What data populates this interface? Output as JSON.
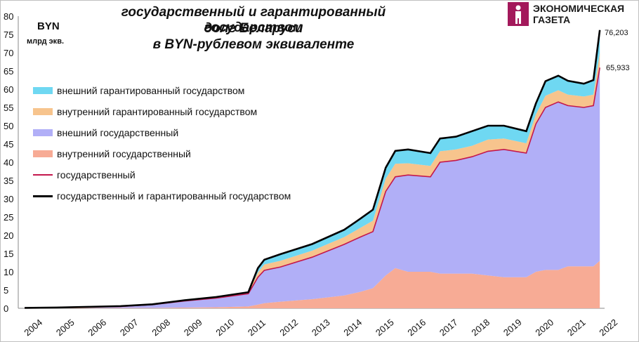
{
  "title": {
    "line1": "государственный и гарантированный государством",
    "line2": "долг Беларуси",
    "line3": "в BYN-рублевом эквиваленте"
  },
  "unit": {
    "currency": "BYN",
    "note": "млрд экв."
  },
  "logo": {
    "line1": "ЭКОНОМИЧЕСКАЯ",
    "line2": "ГАЗЕТА",
    "color": "#a3195b"
  },
  "end_labels": {
    "total": "76,203",
    "government": "65,933"
  },
  "legend": [
    {
      "label": "внешний гарантированный государством",
      "color": "#6fd8f2",
      "kind": "area"
    },
    {
      "label": "внутренний гарантированный государством",
      "color": "#f7c48d",
      "kind": "area"
    },
    {
      "label": "внешний государственный",
      "color": "#b1aff7",
      "kind": "area"
    },
    {
      "label": "внутренний государственный",
      "color": "#f7ab95",
      "kind": "area"
    },
    {
      "label": "государственный",
      "color": "#c3174c",
      "kind": "line"
    },
    {
      "label": "государственный и гарантированный государством",
      "color": "#000000",
      "kind": "line"
    }
  ],
  "chart_data": {
    "type": "area",
    "stacked": true,
    "x": [
      2004.0,
      2005.0,
      2006.0,
      2007.0,
      2008.0,
      2009.0,
      2010.0,
      2011.0,
      2011.3,
      2011.5,
      2012.0,
      2013.0,
      2014.0,
      2014.5,
      2014.9,
      2015.3,
      2015.6,
      2016.0,
      2016.7,
      2017.0,
      2017.5,
      2018.0,
      2018.5,
      2019.0,
      2019.7,
      2020.0,
      2020.3,
      2020.7,
      2021.0,
      2021.5,
      2021.8,
      2022.0
    ],
    "xlim": [
      2003.8,
      2022.15
    ],
    "xticks": [
      "2004",
      "2005",
      "2006",
      "2007",
      "2008",
      "2009",
      "2010",
      "2011",
      "2012",
      "2013",
      "2014",
      "2015",
      "2016",
      "2017",
      "2018",
      "2019",
      "2020",
      "2021",
      "2022"
    ],
    "ylim": [
      0,
      80
    ],
    "yticks": [
      0,
      5,
      10,
      15,
      20,
      25,
      30,
      35,
      40,
      45,
      50,
      55,
      60,
      65,
      70,
      75,
      80
    ],
    "series": [
      {
        "name": "внутренний государственный",
        "color": "#f7ab95",
        "values": [
          0.0,
          0.1,
          0.1,
          0.1,
          0.1,
          0.2,
          0.3,
          0.5,
          1.0,
          1.4,
          1.8,
          2.5,
          3.5,
          4.5,
          5.5,
          9.0,
          11.0,
          10.0,
          10.0,
          9.5,
          9.5,
          9.5,
          9.0,
          8.5,
          8.5,
          10.0,
          10.5,
          10.5,
          11.5,
          11.5,
          11.5,
          13.0
        ]
      },
      {
        "name": "внешний государственный",
        "color": "#b1aff7",
        "values": [
          0.1,
          0.1,
          0.3,
          0.4,
          0.9,
          1.8,
          2.5,
          3.5,
          7.5,
          9.0,
          9.5,
          11.5,
          14.0,
          15.0,
          15.5,
          23.0,
          25.0,
          26.5,
          26.0,
          30.5,
          31.0,
          32.0,
          34.0,
          35.0,
          34.0,
          40.5,
          44.5,
          46.0,
          44.0,
          43.5,
          44.0,
          52.9
        ]
      },
      {
        "name": "внутренний гарантированный государством",
        "color": "#f7c48d",
        "values": [
          0.0,
          0.0,
          0.0,
          0.1,
          0.1,
          0.2,
          0.3,
          0.4,
          1.3,
          1.6,
          1.7,
          1.8,
          2.0,
          2.5,
          3.0,
          3.5,
          3.6,
          3.2,
          3.0,
          3.0,
          3.0,
          3.0,
          3.2,
          3.0,
          2.7,
          2.6,
          3.2,
          3.2,
          3.0,
          3.0,
          3.0,
          4.0
        ]
      },
      {
        "name": "внешний гарантированный государством",
        "color": "#6fd8f2",
        "values": [
          0.0,
          0.0,
          0.0,
          0.0,
          0.0,
          0.0,
          0.0,
          0.0,
          1.2,
          1.3,
          1.8,
          1.8,
          2.0,
          2.5,
          3.0,
          3.0,
          3.5,
          3.8,
          3.5,
          3.5,
          3.5,
          4.0,
          3.8,
          3.5,
          3.3,
          3.0,
          4.0,
          4.0,
          3.8,
          3.5,
          4.0,
          6.3
        ]
      }
    ]
  }
}
